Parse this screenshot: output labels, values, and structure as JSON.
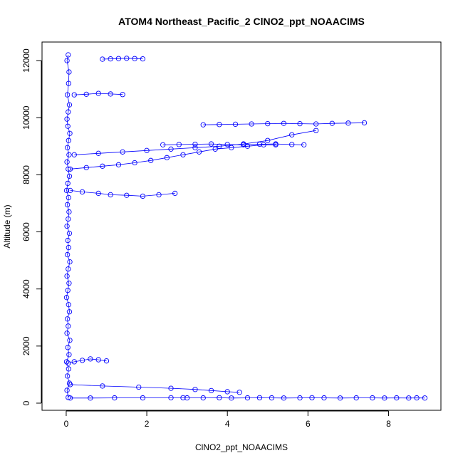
{
  "chart_data": {
    "type": "scatter",
    "title": "ATOM4 Northeast_Pacific_2 ClNO2_ppt_NOAACIMS",
    "xlabel": "ClNO2_ppt_NOAACIMS",
    "ylabel": "Altitude (m)",
    "xlim": [
      -0.6,
      9.3
    ],
    "ylim": [
      -250,
      12650
    ],
    "xticks": [
      0,
      2,
      4,
      6,
      8
    ],
    "yticks": [
      0,
      2000,
      4000,
      6000,
      8000,
      10000,
      12000
    ],
    "grid": false,
    "legend": "none",
    "series_color": "#0000ff",
    "connected": true,
    "core_profile": {
      "x": [
        0.05,
        0.02,
        0.08,
        0.03,
        0.06,
        0.01,
        0.07,
        0.04,
        0.09,
        0.02,
        0.05,
        0.03,
        0.08,
        0.06,
        0.01,
        0.04,
        0.07,
        0.02,
        0.05,
        0.09,
        0.03,
        0.06,
        0.04,
        0.08,
        0.02,
        0.05,
        0.07,
        0.03,
        0.06,
        0.01,
        0.04,
        0.08,
        0.05,
        0.02,
        0.07,
        0.03,
        0.06,
        0.09,
        0.04,
        0.02,
        0.05,
        0.08,
        0.03,
        0.06,
        0.07,
        0.02,
        0.05
      ],
      "y": [
        200,
        450,
        700,
        950,
        1200,
        1450,
        1700,
        1950,
        2200,
        2450,
        2700,
        2950,
        3200,
        3450,
        3700,
        3950,
        4200,
        4450,
        4700,
        4950,
        5200,
        5450,
        5700,
        5950,
        6200,
        6450,
        6700,
        6950,
        7200,
        7450,
        7700,
        7950,
        8200,
        8450,
        8700,
        8950,
        9200,
        9450,
        9700,
        9950,
        10200,
        10450,
        10800,
        11200,
        11600,
        12000,
        12200
      ]
    },
    "series": [
      {
        "x": [
          0.1,
          0.6,
          1.2,
          1.9,
          2.6,
          2.9,
          3.0,
          3.4,
          3.8,
          4.1,
          4.5,
          4.8,
          5.1,
          5.4,
          5.8,
          6.1,
          6.4,
          6.8,
          7.2,
          7.6,
          7.9,
          8.2,
          8.5,
          8.7,
          8.9
        ],
        "y": [
          180,
          180,
          185,
          185,
          190,
          190,
          185,
          185,
          190,
          180,
          185,
          190,
          185,
          180,
          185,
          190,
          185,
          180,
          185,
          185,
          180,
          185,
          180,
          185,
          180
        ]
      },
      {
        "x": [
          0.1,
          0.9,
          1.8,
          2.6,
          3.2,
          3.6,
          4.0,
          4.3
        ],
        "y": [
          650,
          600,
          560,
          520,
          480,
          440,
          400,
          380
        ]
      },
      {
        "x": [
          0.1,
          0.4,
          0.8,
          1.1,
          1.5,
          1.9,
          2.3,
          2.7
        ],
        "y": [
          7450,
          7400,
          7350,
          7300,
          7280,
          7250,
          7300,
          7350
        ]
      },
      {
        "x": [
          0.1,
          0.5,
          0.9,
          1.3,
          1.7,
          2.1,
          2.5,
          2.9,
          3.3,
          3.7,
          4.1,
          4.5,
          4.9,
          5.2
        ],
        "y": [
          8200,
          8250,
          8300,
          8350,
          8420,
          8500,
          8600,
          8700,
          8800,
          8900,
          8950,
          9000,
          9050,
          9050
        ]
      },
      {
        "x": [
          2.4,
          2.8,
          3.2,
          3.6,
          4.0,
          4.4,
          4.8,
          5.2,
          5.6,
          5.9
        ],
        "y": [
          9050,
          9060,
          9070,
          9080,
          9060,
          9050,
          9070,
          9080,
          9060,
          9050
        ]
      },
      {
        "x": [
          0.2,
          0.8,
          1.4,
          2.0,
          2.6,
          3.2,
          3.8,
          4.4,
          5.0,
          5.6,
          6.2
        ],
        "y": [
          8700,
          8750,
          8800,
          8850,
          8900,
          8950,
          9000,
          9080,
          9200,
          9400,
          9550
        ]
      },
      {
        "x": [
          3.4,
          3.8,
          4.2,
          4.6,
          5.0,
          5.4,
          5.8,
          6.2,
          6.6,
          7.0,
          7.4
        ],
        "y": [
          9750,
          9760,
          9770,
          9780,
          9790,
          9800,
          9790,
          9780,
          9800,
          9810,
          9820
        ]
      },
      {
        "x": [
          0.2,
          0.5,
          0.8,
          1.1,
          1.4
        ],
        "y": [
          10800,
          10820,
          10850,
          10830,
          10810
        ]
      },
      {
        "x": [
          0.9,
          1.1,
          1.3,
          1.5,
          1.7,
          1.9
        ],
        "y": [
          12050,
          12060,
          12070,
          12080,
          12070,
          12060
        ]
      },
      {
        "x": [
          0.05,
          0.2,
          0.4,
          0.6,
          0.8,
          1.0
        ],
        "y": [
          1400,
          1450,
          1500,
          1550,
          1520,
          1480
        ]
      }
    ]
  }
}
